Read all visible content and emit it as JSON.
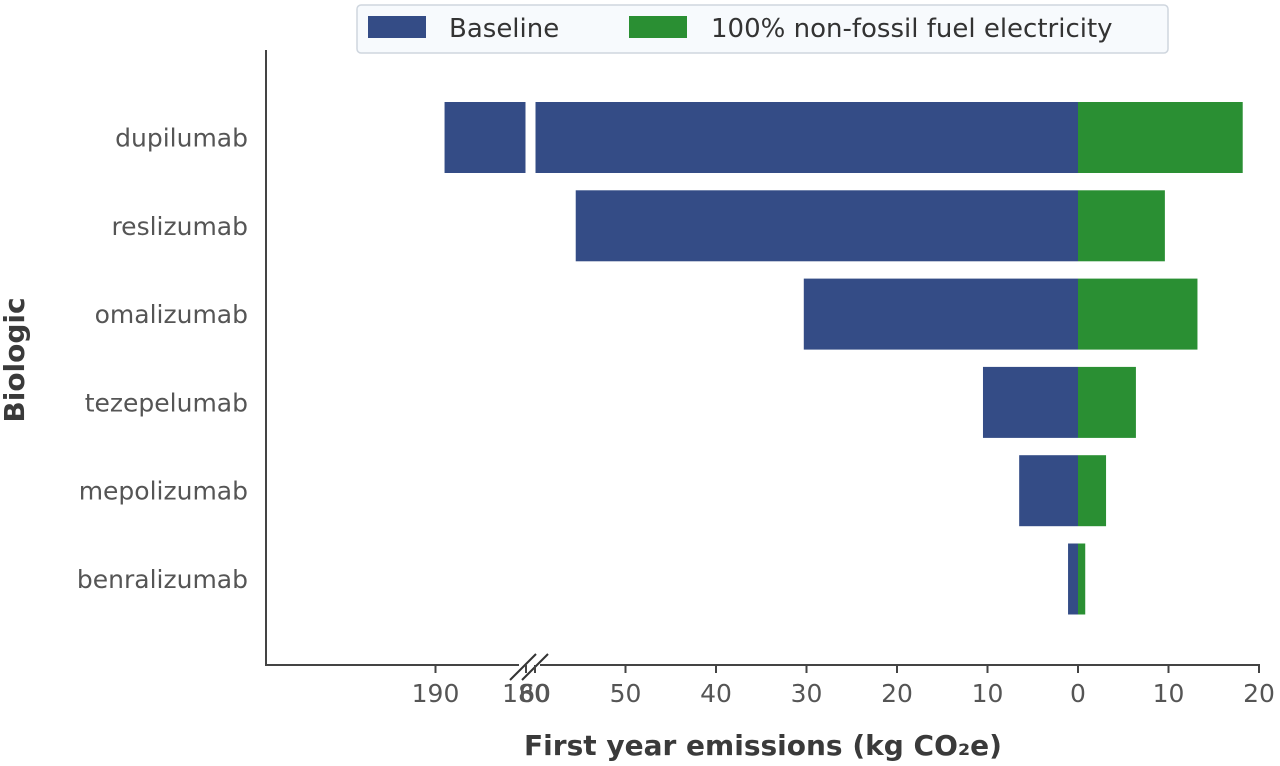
{
  "chart_data": {
    "type": "bar",
    "orientation": "horizontal",
    "stacked": "diverging",
    "categories": [
      "dupilumab",
      "reslizumab",
      "omalizumab",
      "tezepelumab",
      "mepolizumab",
      "benralizumab"
    ],
    "series": [
      {
        "name": "Baseline",
        "color": "#344c86",
        "direction": "left",
        "values": [
          189,
          55.5,
          30.3,
          10.5,
          6.5,
          1.1
        ]
      },
      {
        "name": "100% non-fossil fuel electricity",
        "color": "#2a8f33",
        "direction": "right",
        "values": [
          18.2,
          9.6,
          13.2,
          6.4,
          3.1,
          0.8
        ]
      }
    ],
    "xlabel": "First year emissions (kg CO₂e)",
    "ylabel": "Biologic",
    "x_axis_break": {
      "from": 60,
      "to": 180
    },
    "xlim": [
      -199,
      20
    ],
    "x_ticks": [
      "190",
      "180",
      "60",
      "50",
      "40",
      "30",
      "20",
      "10",
      "0",
      "10",
      "20"
    ],
    "legend_position": "top-center",
    "grid": false
  }
}
